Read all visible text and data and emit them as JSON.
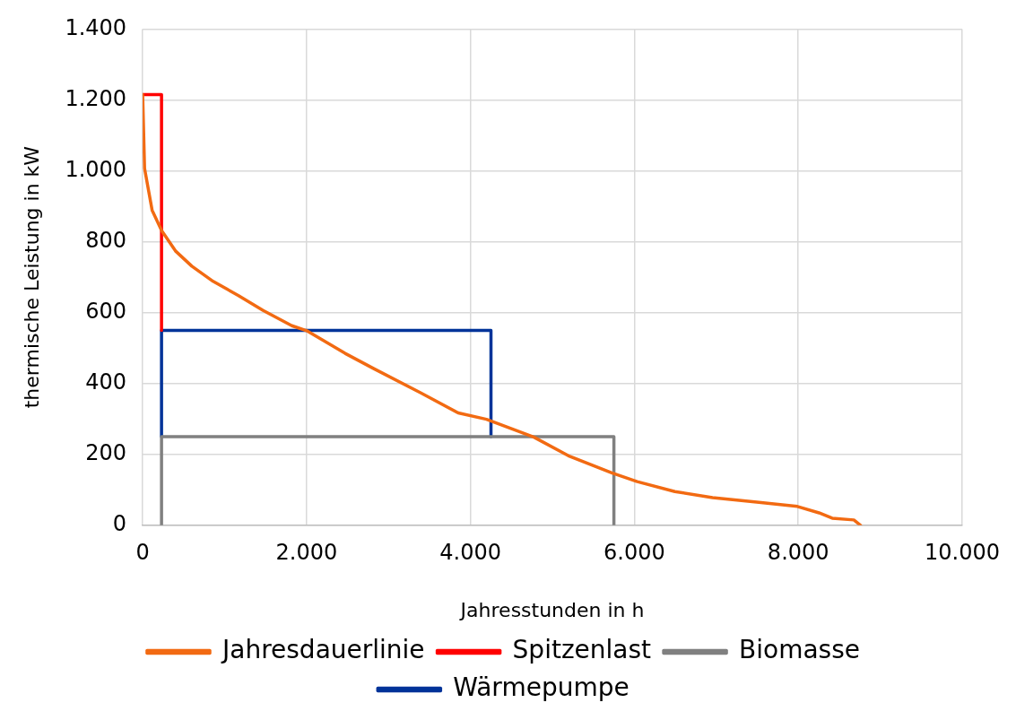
{
  "chart_data": {
    "type": "line",
    "xlabel": "Jahresstunden in h",
    "ylabel": "thermische Leistung in kW",
    "xlim": [
      0,
      10000
    ],
    "ylim": [
      0,
      1400
    ],
    "xticks": [
      0,
      {
        "value": 2000,
        "label": "2.000"
      },
      {
        "value": 4000,
        "label": "4.000"
      },
      {
        "value": 6000,
        "label": "6.000"
      },
      {
        "value": 8000,
        "label": "8.000"
      },
      {
        "value": 10000,
        "label": "10.000"
      }
    ],
    "yticks": [
      0,
      200,
      400,
      600,
      800,
      {
        "value": 1000,
        "label": "1.000"
      },
      {
        "value": 1200,
        "label": "1.200"
      },
      {
        "value": 1400,
        "label": "1.400"
      }
    ],
    "grid": true,
    "legend": "bottom",
    "marker": "none",
    "line_style": "solid",
    "series": [
      {
        "name": "Jahresdauerlinie",
        "color": "#f26a12",
        "x": [
          0,
          23,
          115,
          230,
          400,
          600,
          860,
          1170,
          1470,
          1820,
          2010,
          2470,
          2820,
          3390,
          3850,
          4195,
          4770,
          5195,
          5724,
          6034,
          6494,
          6954,
          7494,
          7989,
          8253,
          8414,
          8678,
          8759
        ],
        "values": [
          1215,
          1007,
          889,
          832,
          774,
          731,
          688,
          648,
          606,
          563,
          548,
          485,
          442,
          374,
          317,
          299,
          249,
          196,
          148,
          123,
          95,
          78,
          65,
          53,
          35,
          20,
          15,
          0
        ]
      },
      {
        "name": "Spitzenlast",
        "color": "#ff0000",
        "x": [
          0,
          230,
          230
        ],
        "values": [
          1215,
          1215,
          550
        ]
      },
      {
        "name": "Biomasse",
        "color": "#808080",
        "x": [
          230,
          230,
          5750,
          5750
        ],
        "values": [
          0,
          250,
          250,
          0
        ]
      },
      {
        "name": "Wärmepumpe",
        "color": "#003399",
        "x": [
          230,
          230,
          4250,
          4250
        ],
        "values": [
          250,
          550,
          550,
          250
        ]
      }
    ]
  }
}
